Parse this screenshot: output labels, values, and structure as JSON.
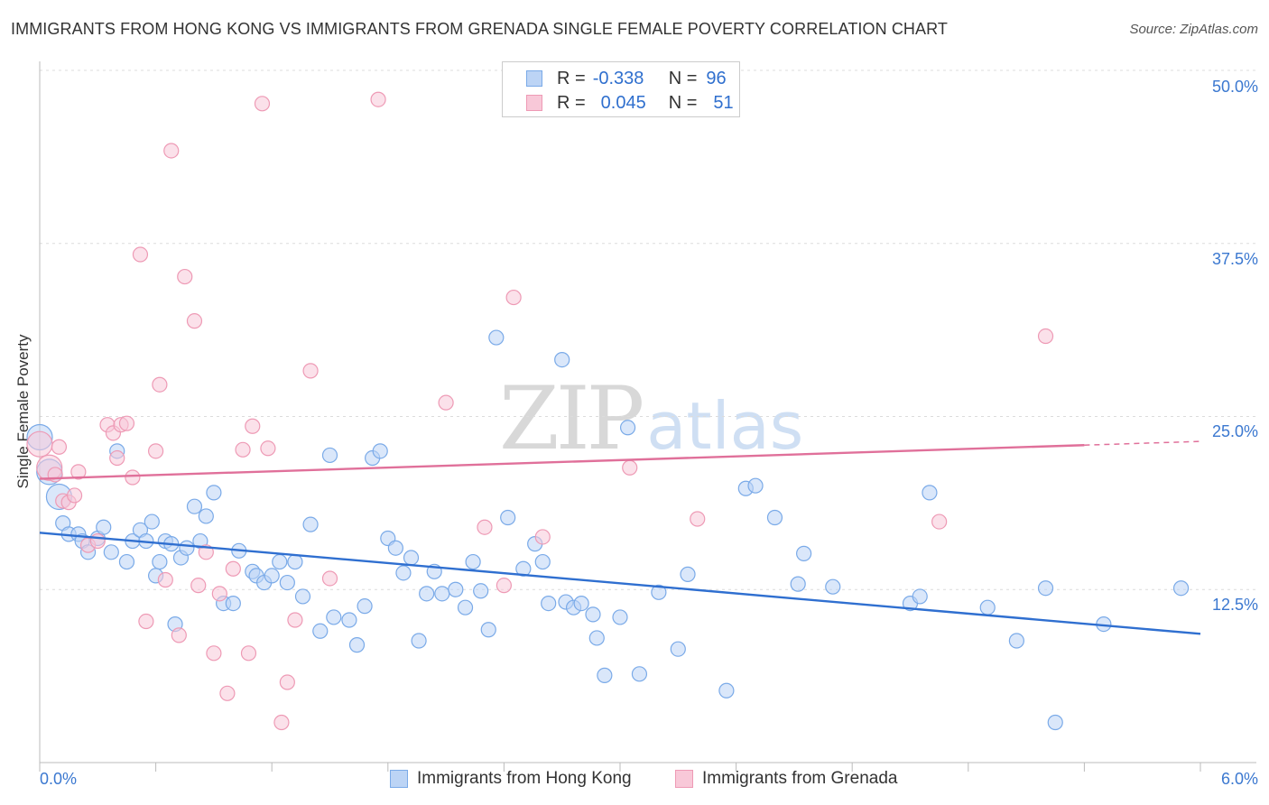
{
  "title": "IMMIGRANTS FROM HONG KONG VS IMMIGRANTS FROM GRENADA SINGLE FEMALE POVERTY CORRELATION CHART",
  "source": "Source: ZipAtlas.com",
  "watermark": {
    "zip": "ZIP",
    "atlas": "atlas"
  },
  "legend_top": {
    "rows": [
      {
        "r_label": "R =",
        "r_value": "-0.338",
        "n_label": "N =",
        "n_value": "96"
      },
      {
        "r_label": "R =",
        "r_value": "0.045",
        "n_label": "N =",
        "n_value": "51"
      }
    ]
  },
  "chart_data": {
    "type": "scatter",
    "title": "IMMIGRANTS FROM HONG KONG VS IMMIGRANTS FROM GRENADA SINGLE FEMALE POVERTY CORRELATION CHART",
    "xlabel": "",
    "ylabel": "Single Female Poverty",
    "xlim": [
      0,
      6
    ],
    "ylim": [
      0,
      50
    ],
    "x_tick_labels": [
      "0.0%",
      "6.0%"
    ],
    "y_ticks": [
      12.5,
      25.0,
      37.5,
      50.0
    ],
    "y_tick_labels": [
      "12.5%",
      "25.0%",
      "37.5%",
      "50.0%"
    ],
    "grid": true,
    "legend_position": "bottom",
    "series": [
      {
        "name": "Immigrants from Hong Kong",
        "color": "#7aaae8",
        "fill": "#bcd4f5",
        "line_color": "#2f6fd0",
        "trend": {
          "x0": 0.0,
          "y0": 16.6,
          "x1": 6.0,
          "y1": 9.3
        },
        "points": [
          [
            0.0,
            23.5
          ],
          [
            0.05,
            21.0
          ],
          [
            0.1,
            19.2
          ],
          [
            0.12,
            17.3
          ],
          [
            0.15,
            16.5
          ],
          [
            0.2,
            16.5
          ],
          [
            0.22,
            16.0
          ],
          [
            0.25,
            15.2
          ],
          [
            0.3,
            16.2
          ],
          [
            0.33,
            17.0
          ],
          [
            0.37,
            15.2
          ],
          [
            0.4,
            22.5
          ],
          [
            0.45,
            14.5
          ],
          [
            0.48,
            16.0
          ],
          [
            0.52,
            16.8
          ],
          [
            0.55,
            16.0
          ],
          [
            0.58,
            17.4
          ],
          [
            0.6,
            13.5
          ],
          [
            0.62,
            14.5
          ],
          [
            0.65,
            16.0
          ],
          [
            0.68,
            15.8
          ],
          [
            0.7,
            10.0
          ],
          [
            0.73,
            14.8
          ],
          [
            0.76,
            15.5
          ],
          [
            0.8,
            18.5
          ],
          [
            0.83,
            16.0
          ],
          [
            0.86,
            17.8
          ],
          [
            0.9,
            19.5
          ],
          [
            0.95,
            11.5
          ],
          [
            1.0,
            11.5
          ],
          [
            1.03,
            15.3
          ],
          [
            1.1,
            13.8
          ],
          [
            1.12,
            13.5
          ],
          [
            1.16,
            13.0
          ],
          [
            1.2,
            13.5
          ],
          [
            1.24,
            14.5
          ],
          [
            1.28,
            13.0
          ],
          [
            1.32,
            14.5
          ],
          [
            1.36,
            12.0
          ],
          [
            1.4,
            17.2
          ],
          [
            1.45,
            9.5
          ],
          [
            1.5,
            22.2
          ],
          [
            1.52,
            10.5
          ],
          [
            1.6,
            10.3
          ],
          [
            1.64,
            8.5
          ],
          [
            1.68,
            11.3
          ],
          [
            1.72,
            22.0
          ],
          [
            1.76,
            22.5
          ],
          [
            1.8,
            16.2
          ],
          [
            1.84,
            15.5
          ],
          [
            1.88,
            13.7
          ],
          [
            1.92,
            14.8
          ],
          [
            1.96,
            8.8
          ],
          [
            2.0,
            12.2
          ],
          [
            2.04,
            13.8
          ],
          [
            2.08,
            12.2
          ],
          [
            2.15,
            12.5
          ],
          [
            2.2,
            11.2
          ],
          [
            2.24,
            14.5
          ],
          [
            2.28,
            12.4
          ],
          [
            2.32,
            9.6
          ],
          [
            2.36,
            30.7
          ],
          [
            2.42,
            17.7
          ],
          [
            2.5,
            14.0
          ],
          [
            2.56,
            15.8
          ],
          [
            2.6,
            14.5
          ],
          [
            2.63,
            11.5
          ],
          [
            2.7,
            29.1
          ],
          [
            2.72,
            11.6
          ],
          [
            2.76,
            11.2
          ],
          [
            2.8,
            11.5
          ],
          [
            2.86,
            10.7
          ],
          [
            2.88,
            9.0
          ],
          [
            2.92,
            6.3
          ],
          [
            3.0,
            10.5
          ],
          [
            3.04,
            24.2
          ],
          [
            3.1,
            6.4
          ],
          [
            3.2,
            12.3
          ],
          [
            3.3,
            8.2
          ],
          [
            3.35,
            13.6
          ],
          [
            3.55,
            5.2
          ],
          [
            3.65,
            19.8
          ],
          [
            3.7,
            20.0
          ],
          [
            3.8,
            17.7
          ],
          [
            3.92,
            12.9
          ],
          [
            3.95,
            15.1
          ],
          [
            4.1,
            12.7
          ],
          [
            4.5,
            11.5
          ],
          [
            4.55,
            12.0
          ],
          [
            4.6,
            19.5
          ],
          [
            4.9,
            11.2
          ],
          [
            5.05,
            8.8
          ],
          [
            5.2,
            12.6
          ],
          [
            5.25,
            2.9
          ],
          [
            5.5,
            10.0
          ],
          [
            5.9,
            12.6
          ]
        ]
      },
      {
        "name": "Immigrants from Grenada",
        "color": "#ee9ab5",
        "fill": "#f8c8d8",
        "line_color": "#e0709a",
        "trend": {
          "x0": 0.0,
          "y0": 20.5,
          "x1": 6.0,
          "y1": 23.2,
          "solid_until": 5.4
        },
        "points": [
          [
            0.0,
            23.0
          ],
          [
            0.05,
            21.3
          ],
          [
            0.08,
            20.8
          ],
          [
            0.1,
            22.8
          ],
          [
            0.12,
            18.9
          ],
          [
            0.15,
            18.8
          ],
          [
            0.18,
            19.3
          ],
          [
            0.2,
            21.0
          ],
          [
            0.25,
            15.7
          ],
          [
            0.3,
            16.0
          ],
          [
            0.35,
            24.4
          ],
          [
            0.38,
            23.8
          ],
          [
            0.4,
            22.0
          ],
          [
            0.42,
            24.4
          ],
          [
            0.45,
            24.5
          ],
          [
            0.48,
            20.6
          ],
          [
            0.52,
            36.7
          ],
          [
            0.55,
            10.2
          ],
          [
            0.6,
            22.5
          ],
          [
            0.62,
            27.3
          ],
          [
            0.65,
            13.2
          ],
          [
            0.68,
            44.2
          ],
          [
            0.72,
            9.2
          ],
          [
            0.75,
            35.1
          ],
          [
            0.8,
            31.9
          ],
          [
            0.82,
            12.8
          ],
          [
            0.86,
            15.2
          ],
          [
            0.9,
            7.9
          ],
          [
            0.93,
            12.2
          ],
          [
            0.97,
            5.0
          ],
          [
            1.0,
            14.0
          ],
          [
            1.05,
            22.6
          ],
          [
            1.08,
            7.9
          ],
          [
            1.1,
            24.3
          ],
          [
            1.15,
            47.6
          ],
          [
            1.18,
            22.7
          ],
          [
            1.25,
            2.9
          ],
          [
            1.28,
            5.8
          ],
          [
            1.32,
            10.3
          ],
          [
            1.4,
            28.3
          ],
          [
            1.5,
            13.3
          ],
          [
            1.75,
            47.9
          ],
          [
            2.1,
            26.0
          ],
          [
            2.3,
            17.0
          ],
          [
            2.4,
            12.8
          ],
          [
            2.45,
            33.6
          ],
          [
            2.6,
            16.3
          ],
          [
            3.05,
            21.3
          ],
          [
            3.4,
            17.6
          ],
          [
            4.65,
            17.4
          ],
          [
            5.2,
            30.8
          ]
        ]
      }
    ]
  }
}
